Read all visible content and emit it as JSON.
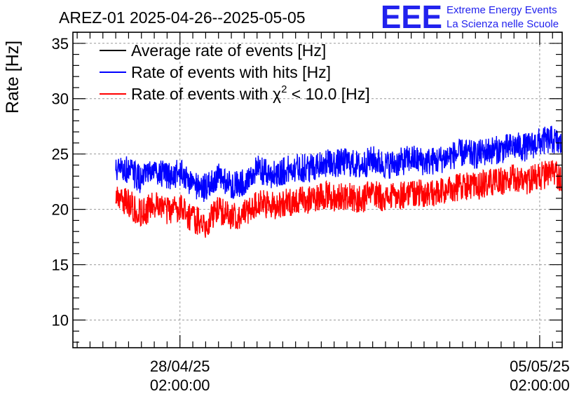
{
  "chart_data": {
    "type": "line",
    "title": "AREZ-01 2025-04-26--2025-05-05",
    "ylabel": "Rate [Hz]",
    "xlabel": "",
    "ylim": [
      7.5,
      36
    ],
    "xlim": [
      "2025-04-26 00:00:00",
      "2025-05-05 12:30:00"
    ],
    "y_ticks": [
      10,
      15,
      20,
      25,
      30,
      35
    ],
    "x_ticks": [
      {
        "value": "2025-04-28 02:00:00",
        "label_line1": "28/04/25",
        "label_line2": "02:00:00"
      },
      {
        "value": "2025-05-05 02:00:00",
        "label_line1": "05/05/25",
        "label_line2": "02:00:00"
      }
    ],
    "grid": true,
    "legend_position": "top-left",
    "legend": {
      "average": "Average rate of events [Hz]",
      "hits": "Rate of events with hits [Hz]",
      "chi2_prefix": "Rate of events with ",
      "chi2_symbol": "χ",
      "chi2_sup": "2",
      "chi2_suffix": " < 10.0 [Hz]"
    },
    "series": [
      {
        "name": "Average rate of events [Hz]",
        "color": "#000000",
        "x": [],
        "y": []
      },
      {
        "name": "Rate of events with hits [Hz]",
        "color": "#0000ff",
        "noise": 1.3,
        "x": [
          "2025-04-26 20:00",
          "2025-04-27 02:00",
          "2025-04-27 08:00",
          "2025-04-27 14:00",
          "2025-04-27 20:00",
          "2025-04-28 02:00",
          "2025-04-28 08:00",
          "2025-04-28 14:00",
          "2025-04-28 20:00",
          "2025-04-29 02:00",
          "2025-04-29 08:00",
          "2025-04-29 14:00",
          "2025-04-29 20:00",
          "2025-04-30 02:00",
          "2025-04-30 08:00",
          "2025-04-30 14:00",
          "2025-04-30 20:00",
          "2025-05-01 02:00",
          "2025-05-01 08:00",
          "2025-05-01 14:00",
          "2025-05-01 20:00",
          "2025-05-02 02:00",
          "2025-05-02 08:00",
          "2025-05-02 14:00",
          "2025-05-02 20:00",
          "2025-05-03 02:00",
          "2025-05-03 08:00",
          "2025-05-03 14:00",
          "2025-05-03 20:00",
          "2025-05-04 02:00",
          "2025-05-04 08:00",
          "2025-05-04 14:00",
          "2025-05-04 20:00",
          "2025-05-05 02:00",
          "2025-05-05 08:00",
          "2025-05-05 12:00"
        ],
        "y": [
          23.5,
          23.6,
          22.6,
          23.6,
          22.9,
          23.3,
          22.3,
          21.9,
          22.9,
          22.2,
          22.5,
          23.6,
          23.1,
          23.4,
          23.8,
          23.7,
          24.2,
          24.1,
          24.3,
          23.9,
          24.5,
          24.0,
          24.2,
          24.6,
          24.3,
          24.4,
          24.8,
          25.1,
          24.9,
          25.3,
          25.4,
          25.7,
          25.6,
          26.1,
          26.3,
          25.8
        ]
      },
      {
        "name": "Rate of events with χ² < 10.0 [Hz]",
        "color": "#ff0000",
        "noise": 1.3,
        "x": [
          "2025-04-26 20:00",
          "2025-04-27 02:00",
          "2025-04-27 08:00",
          "2025-04-27 14:00",
          "2025-04-27 20:00",
          "2025-04-28 02:00",
          "2025-04-28 08:00",
          "2025-04-28 14:00",
          "2025-04-28 20:00",
          "2025-04-29 02:00",
          "2025-04-29 08:00",
          "2025-04-29 14:00",
          "2025-04-29 20:00",
          "2025-04-30 02:00",
          "2025-04-30 08:00",
          "2025-04-30 14:00",
          "2025-04-30 20:00",
          "2025-05-01 02:00",
          "2025-05-01 08:00",
          "2025-05-01 14:00",
          "2025-05-01 20:00",
          "2025-05-02 02:00",
          "2025-05-02 08:00",
          "2025-05-02 14:00",
          "2025-05-02 20:00",
          "2025-05-03 02:00",
          "2025-05-03 08:00",
          "2025-05-03 14:00",
          "2025-05-03 20:00",
          "2025-05-04 02:00",
          "2025-05-04 08:00",
          "2025-05-04 14:00",
          "2025-05-04 20:00",
          "2025-05-05 02:00",
          "2025-05-05 08:00",
          "2025-05-05 12:00"
        ],
        "y": [
          20.8,
          20.6,
          19.6,
          20.4,
          19.8,
          20.2,
          19.1,
          18.7,
          19.9,
          19.4,
          19.6,
          20.6,
          20.3,
          20.5,
          20.8,
          20.8,
          21.3,
          21.1,
          21.2,
          20.8,
          21.5,
          21.0,
          21.2,
          21.6,
          21.4,
          21.4,
          21.8,
          22.2,
          22.0,
          22.4,
          22.5,
          22.8,
          22.6,
          23.0,
          23.2,
          22.8
        ]
      }
    ]
  },
  "logo": {
    "mark": "EEE",
    "line1": "Extreme Energy Events",
    "line2": "La Scienza nelle Scuole"
  }
}
